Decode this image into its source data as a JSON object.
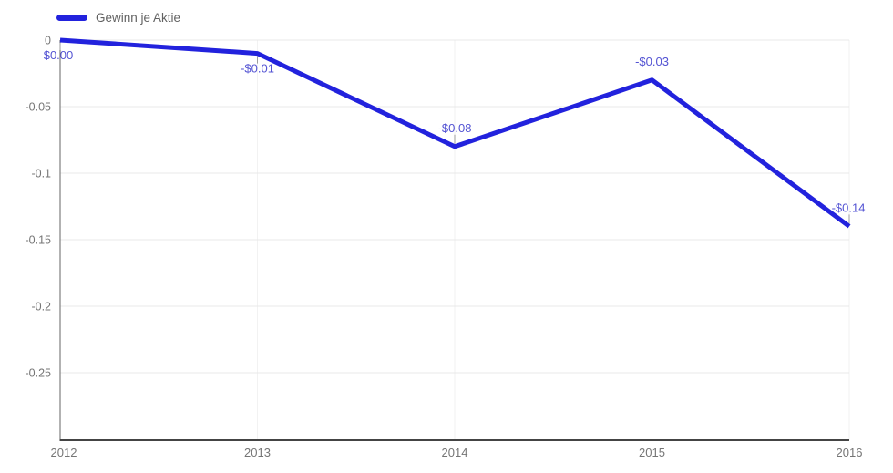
{
  "page": {
    "background": "#ffffff"
  },
  "chart_data": {
    "type": "line",
    "title": "",
    "legend": {
      "label": "Gewinn je Aktie",
      "position": "top-left"
    },
    "categories": [
      "2012",
      "2013",
      "2014",
      "2015",
      "2016"
    ],
    "series": [
      {
        "name": "Gewinn je Aktie",
        "color": "#2222dd",
        "values": [
          0,
          -0.01,
          -0.08,
          -0.03,
          -0.14
        ]
      }
    ],
    "point_labels": [
      "$0.00",
      "-$0.01",
      "-$0.08",
      "-$0.03",
      "-$0.14"
    ],
    "label_placement": [
      "below",
      "below",
      "above",
      "above",
      "above"
    ],
    "y_axis": {
      "ticks": [
        0,
        -0.05,
        -0.1,
        -0.15,
        -0.2,
        -0.25
      ],
      "tick_labels": [
        "0",
        "-0.05",
        "-0.1",
        "-0.15",
        "-0.2",
        "-0.25"
      ],
      "range": [
        -0.3,
        0
      ]
    },
    "x_axis": {
      "tick_labels": [
        "2012",
        "2013",
        "2014",
        "2015",
        "2016"
      ]
    },
    "grid": true,
    "colors": {
      "series": "#2222dd",
      "annotation_text": "#5353d3",
      "axis_text": "#757575",
      "legend_text": "#616161",
      "grid_horizontal": "#e8e8e8",
      "grid_vertical": "#f2f2f2",
      "axis_line_left": "#666666",
      "axis_line_bottom": "#444444",
      "stem": "#9e9e9e",
      "background": "#ffffff"
    }
  }
}
